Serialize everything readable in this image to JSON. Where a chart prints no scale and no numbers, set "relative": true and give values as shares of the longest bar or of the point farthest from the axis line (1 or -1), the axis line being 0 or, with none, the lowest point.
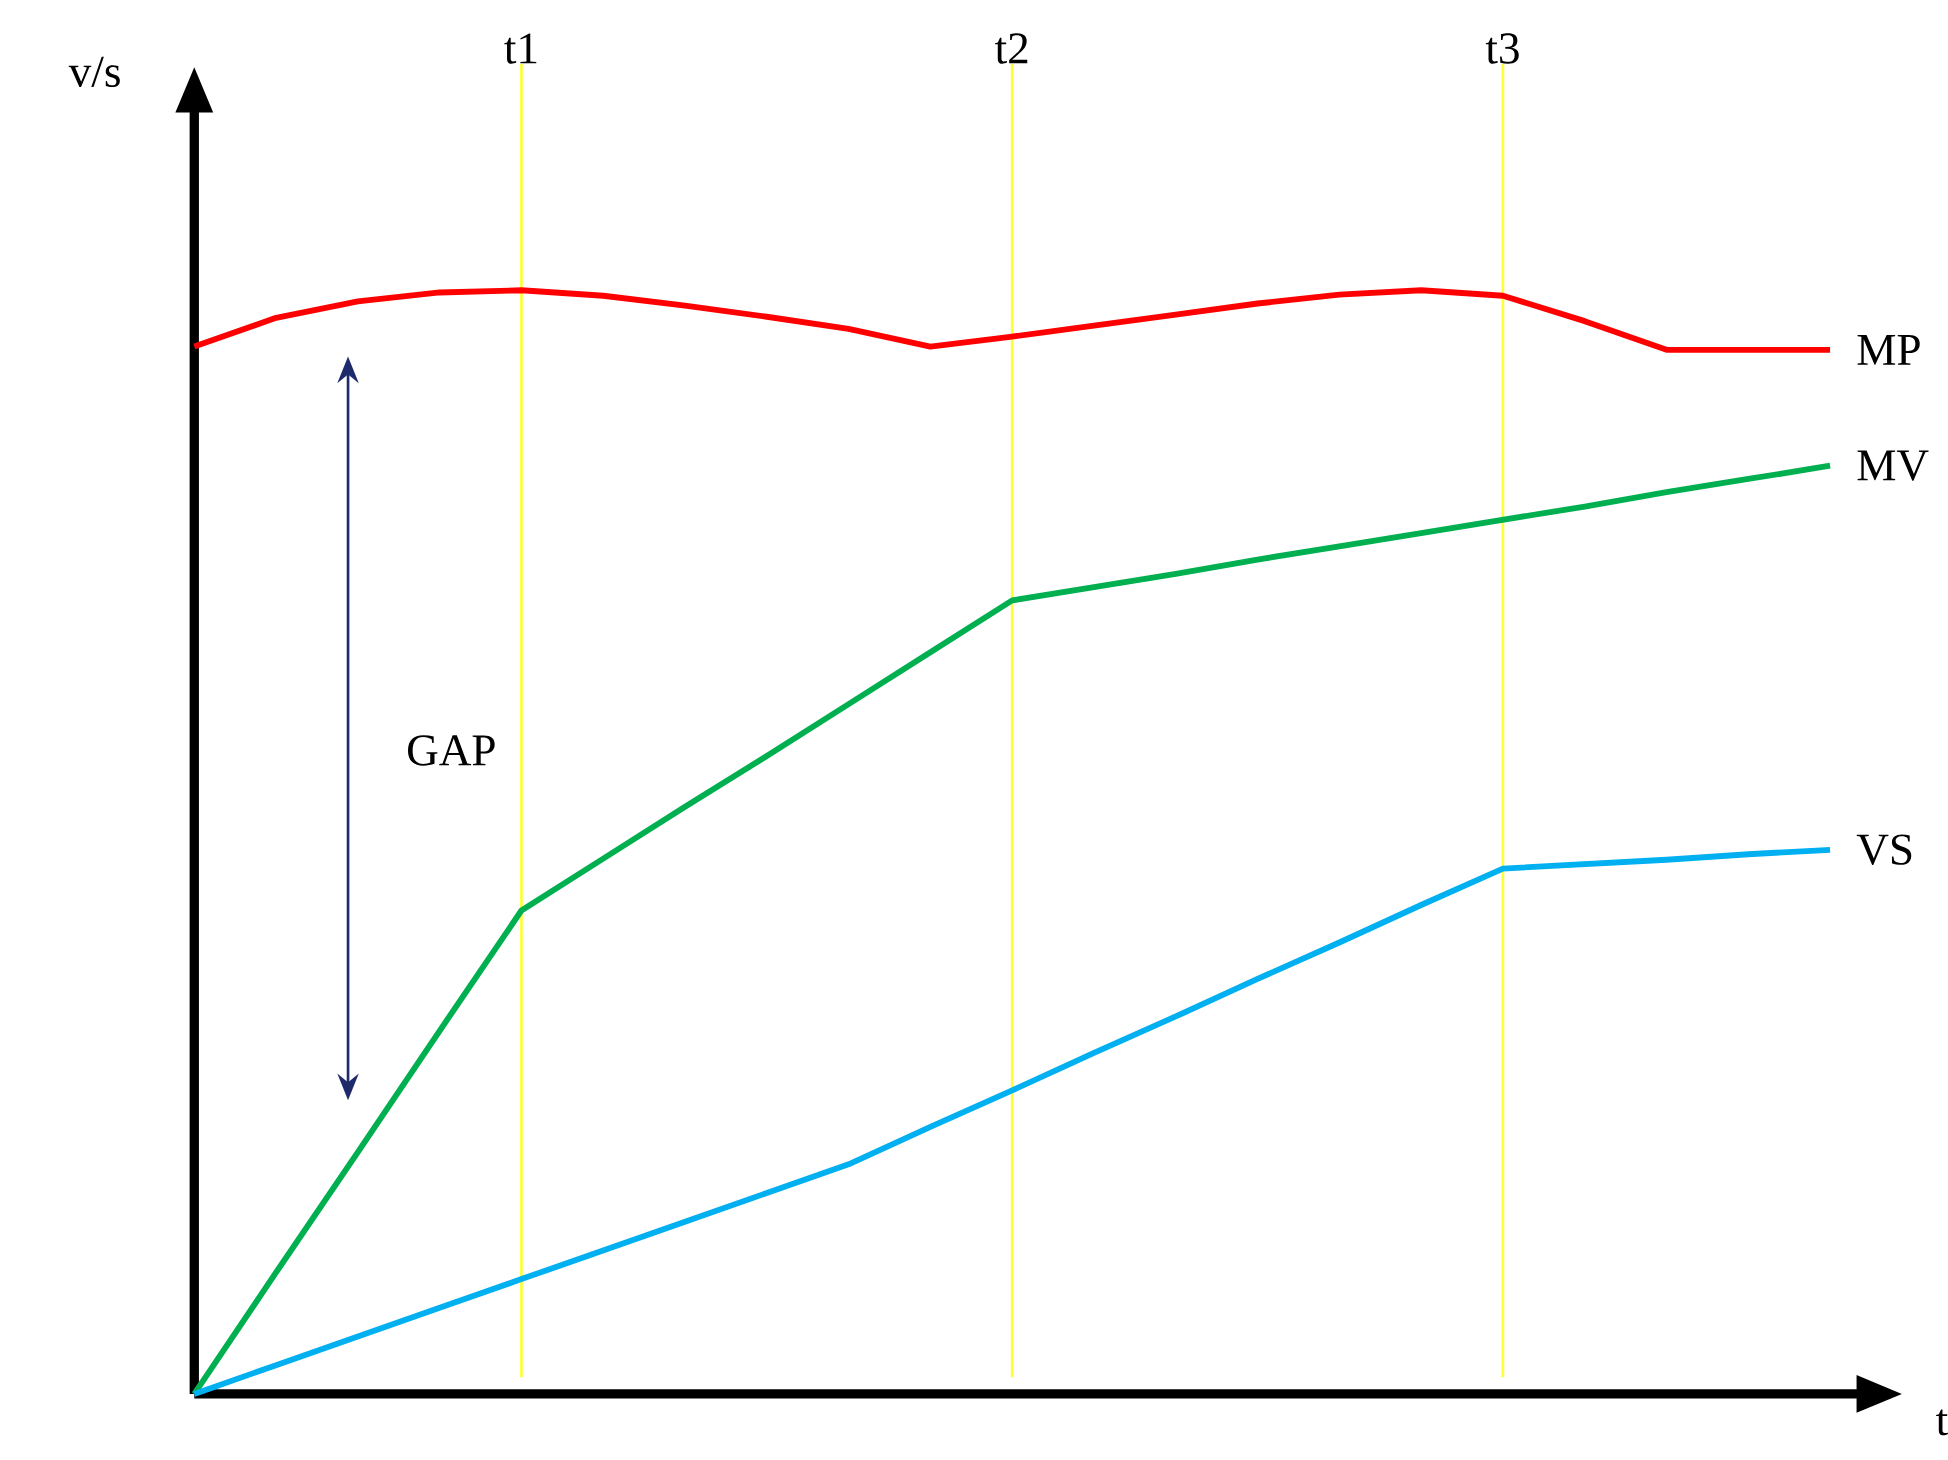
{
  "chart_data": {
    "type": "line",
    "relative": true,
    "tick_labels": "x",
    "xlabel": "t",
    "ylabel": "v/s",
    "annotations": [
      "GAP"
    ],
    "categories": [
      null,
      null,
      null,
      null,
      "t1",
      null,
      null,
      null,
      null,
      null,
      "t2",
      null,
      null,
      null,
      null,
      null,
      "t3",
      null,
      null,
      null,
      null
    ],
    "ref_lines": [
      {
        "axis": "x",
        "value": "t1",
        "color": "#ffff33"
      },
      {
        "axis": "x",
        "value": "t2",
        "color": "#ffff33"
      },
      {
        "axis": "x",
        "value": "t3",
        "color": "#ffff33"
      }
    ],
    "series": [
      {
        "name": "MP",
        "color": "#ff0000",
        "values": [
          0.949,
          0.975,
          0.99,
          0.998,
          1,
          0.995,
          0.986,
          0.976,
          0.965,
          0.949,
          0.958,
          0.968,
          0.978,
          0.988,
          0.996,
          1,
          0.995,
          0.972,
          0.946,
          0.946,
          0.946
        ]
      },
      {
        "name": "MV",
        "color": "#00b050",
        "values": [
          0,
          0.11,
          0.219,
          0.329,
          0.438,
          0.485,
          0.532,
          0.578,
          0.625,
          0.672,
          0.719,
          0.731,
          0.743,
          0.756,
          0.768,
          0.78,
          0.792,
          0.804,
          0.817,
          0.829,
          0.841
        ]
      },
      {
        "name": "VS",
        "color": "#00b0f0",
        "values": [
          0,
          0.026,
          0.052,
          0.078,
          0.104,
          0.13,
          0.156,
          0.182,
          0.208,
          0.242,
          0.275,
          0.309,
          0.342,
          0.376,
          0.409,
          0.443,
          0.476,
          0.48,
          0.484,
          0.489,
          0.493
        ]
      }
    ]
  }
}
